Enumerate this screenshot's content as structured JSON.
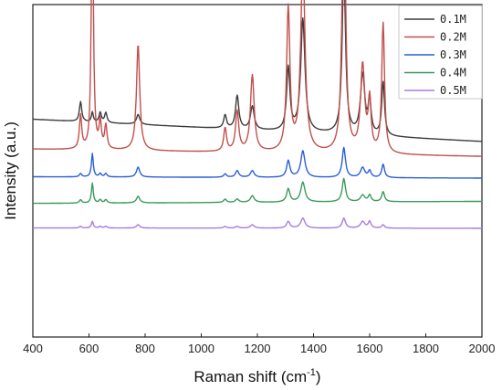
{
  "chart_data": {
    "type": "line",
    "title": "",
    "xlabel": "Raman shift (cm",
    "xlabel_sup": "-1",
    "xlabel_close": ")",
    "ylabel": "Intensity (a.u.)",
    "xlim": [
      400,
      2000
    ],
    "ylim": [
      0,
      1
    ],
    "x_ticks": [
      "400",
      "600",
      "800",
      "1000",
      "1200",
      "1400",
      "1600",
      "1800",
      "2000"
    ],
    "y_ticks_shown": false,
    "grid": false,
    "legend_position": "top-right",
    "peaks": [
      {
        "x": 612,
        "w": 4
      },
      {
        "x": 775,
        "w": 7
      },
      {
        "x": 1128,
        "w": 7
      },
      {
        "x": 1182,
        "w": 8
      },
      {
        "x": 1310,
        "w": 7
      },
      {
        "x": 1362,
        "w": 9
      },
      {
        "x": 1508,
        "w": 7
      },
      {
        "x": 1575,
        "w": 9
      },
      {
        "x": 1600,
        "w": 6
      },
      {
        "x": 1648,
        "w": 6
      },
      {
        "x": 570,
        "w": 5
      },
      {
        "x": 640,
        "w": 5
      },
      {
        "x": 660,
        "w": 5
      },
      {
        "x": 1085,
        "w": 6
      }
    ],
    "series": [
      {
        "name": "0.1M",
        "color": "#3c3c3c",
        "base_start": 0.655,
        "base_end": 0.588,
        "amps": [
          0.03,
          0.03,
          0.1,
          0.07,
          0.19,
          0.34,
          0.51,
          0.18,
          0.1,
          0.16,
          0.06,
          0.03,
          0.03,
          0.04
        ]
      },
      {
        "name": "0.2M",
        "color": "#c0504d",
        "base_start": 0.565,
        "base_end": 0.543,
        "amps": [
          0.86,
          0.32,
          0.12,
          0.23,
          0.43,
          0.58,
          0.85,
          0.26,
          0.15,
          0.39,
          0.1,
          0.08,
          0.07,
          0.07
        ]
      },
      {
        "name": "0.3M",
        "color": "#2a5fd6",
        "base_start": 0.482,
        "base_end": 0.478,
        "amps": [
          0.07,
          0.03,
          0.02,
          0.02,
          0.05,
          0.08,
          0.09,
          0.03,
          0.02,
          0.04,
          0.01,
          0.01,
          0.01,
          0.01
        ]
      },
      {
        "name": "0.4M",
        "color": "#3a9a5b",
        "base_start": 0.402,
        "base_end": 0.408,
        "amps": [
          0.06,
          0.02,
          0.01,
          0.02,
          0.04,
          0.06,
          0.07,
          0.02,
          0.02,
          0.03,
          0.01,
          0.01,
          0.01,
          0.01
        ]
      },
      {
        "name": "0.5M",
        "color": "#a67de0",
        "base_start": 0.328,
        "base_end": 0.327,
        "amps": [
          0.02,
          0.01,
          0.005,
          0.01,
          0.02,
          0.03,
          0.03,
          0.02,
          0.02,
          0.01,
          0.005,
          0.005,
          0.005,
          0.005
        ]
      }
    ]
  }
}
